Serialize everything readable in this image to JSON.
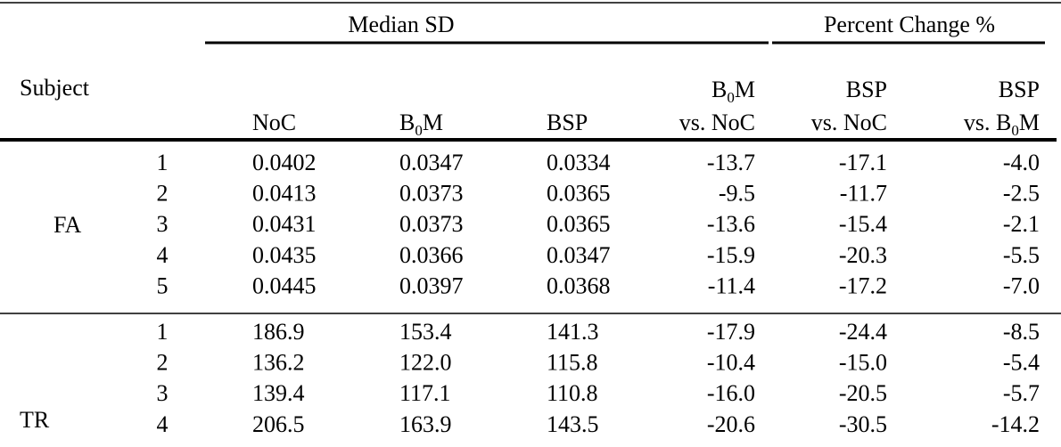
{
  "table": {
    "spanners": [
      "Median SD",
      "Percent Change %"
    ],
    "subject_header": "Subject",
    "columns": [
      {
        "lines": [
          [
            {
              "t": "NoC"
            }
          ]
        ]
      },
      {
        "lines": [
          [
            {
              "t": "B"
            },
            {
              "t": "0",
              "sub": true
            },
            {
              "t": "M"
            }
          ]
        ]
      },
      {
        "lines": [
          [
            {
              "t": "BSP"
            }
          ]
        ]
      },
      {
        "lines": [
          [
            {
              "t": "B"
            },
            {
              "t": "0",
              "sub": true
            },
            {
              "t": "M"
            }
          ],
          [
            {
              "t": "vs. NoC"
            }
          ]
        ]
      },
      {
        "lines": [
          [
            {
              "t": "BSP"
            }
          ],
          [
            {
              "t": "vs. NoC"
            }
          ]
        ]
      },
      {
        "lines": [
          [
            {
              "t": "BSP"
            }
          ],
          [
            {
              "t": "vs. B"
            },
            {
              "t": "0",
              "sub": true
            },
            {
              "t": "M"
            }
          ]
        ]
      }
    ],
    "groups": [
      {
        "label": "FA",
        "rows": [
          [
            "1",
            "0.0402",
            "0.0347",
            "0.0334",
            "-13.7",
            "-17.1",
            "-4.0"
          ],
          [
            "2",
            "0.0413",
            "0.0373",
            "0.0365",
            "-9.5",
            "-11.7",
            "-2.5"
          ],
          [
            "3",
            "0.0431",
            "0.0373",
            "0.0365",
            "-13.6",
            "-15.4",
            "-2.1"
          ],
          [
            "4",
            "0.0435",
            "0.0366",
            "0.0347",
            "-15.9",
            "-20.3",
            "-5.5"
          ],
          [
            "5",
            "0.0445",
            "0.0397",
            "0.0368",
            "-11.4",
            "-17.2",
            "-7.0"
          ]
        ]
      },
      {
        "label": "TR",
        "rows": [
          [
            "1",
            "186.9",
            "153.4",
            "141.3",
            "-17.9",
            "-24.4",
            "-8.5"
          ],
          [
            "2",
            "136.2",
            "122.0",
            "115.8",
            "-10.4",
            "-15.0",
            "-5.4"
          ],
          [
            "3",
            "139.4",
            "117.1",
            "110.8",
            "-16.0",
            "-20.5",
            "-5.7"
          ],
          [
            "4",
            "206.5",
            "163.9",
            "143.5",
            "-20.6",
            "-30.5",
            "-14.2"
          ]
        ]
      }
    ]
  }
}
